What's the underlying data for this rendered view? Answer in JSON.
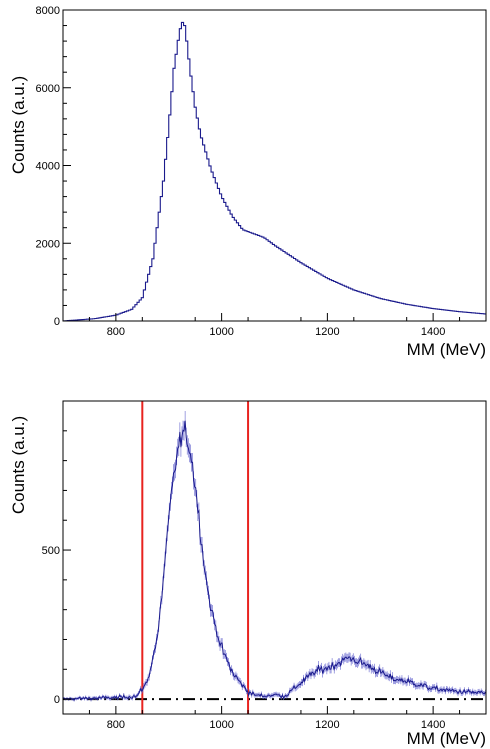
{
  "colors": {
    "histogram": "#1a1a8c",
    "cut_lines": "#e8231f",
    "baseline": "#000000",
    "frame": "#000000"
  },
  "chart_data": [
    {
      "type": "line",
      "title": "",
      "xlabel": "MM (MeV)",
      "ylabel": "Counts (a.u.)",
      "xlim": [
        700,
        1500
      ],
      "ylim": [
        0,
        8000
      ],
      "xticks": [
        800,
        1000,
        1200,
        1400
      ],
      "xtick_labels": [
        "800",
        "1000",
        "1200",
        "1400"
      ],
      "yticks": [
        0,
        2000,
        4000,
        6000,
        8000
      ],
      "ytick_labels": [
        "0",
        "2000",
        "4000",
        "6000",
        "8000"
      ],
      "grid": false,
      "series": [
        {
          "style": "step-histogram",
          "x": [
            700,
            760,
            800,
            830,
            850,
            870,
            890,
            900,
            910,
            920,
            925,
            930,
            935,
            940,
            950,
            960,
            980,
            1000,
            1020,
            1040,
            1060,
            1080,
            1100,
            1150,
            1200,
            1250,
            1300,
            1350,
            1400,
            1450,
            1500
          ],
          "y": [
            0,
            60,
            150,
            300,
            600,
            1600,
            3600,
            5000,
            6500,
            7400,
            7700,
            7600,
            7100,
            6500,
            5500,
            4800,
            3900,
            3200,
            2700,
            2350,
            2250,
            2150,
            1950,
            1500,
            1100,
            800,
            580,
            430,
            320,
            240,
            180
          ]
        }
      ]
    },
    {
      "type": "line",
      "title": "",
      "xlabel": "MM (MeV)",
      "ylabel": "Counts (a.u.)",
      "xlim": [
        700,
        1500
      ],
      "ylim": [
        -50,
        1000
      ],
      "xticks": [
        800,
        1000,
        1200,
        1400
      ],
      "xtick_labels": [
        "800",
        "1000",
        "1200",
        "1400"
      ],
      "yticks": [
        0,
        500
      ],
      "ytick_labels": [
        "0",
        "500"
      ],
      "grid": false,
      "series": [
        {
          "style": "noisy-histogram",
          "x": [
            700,
            750,
            800,
            840,
            860,
            880,
            900,
            910,
            920,
            930,
            940,
            950,
            960,
            970,
            980,
            1000,
            1020,
            1040,
            1050,
            1060,
            1080,
            1100,
            1120,
            1140,
            1160,
            1180,
            1200,
            1220,
            1240,
            1260,
            1280,
            1300,
            1320,
            1350,
            1380,
            1400,
            1450,
            1500
          ],
          "y": [
            0,
            3,
            5,
            10,
            60,
            220,
            600,
            760,
            860,
            900,
            840,
            720,
            560,
            410,
            300,
            170,
            90,
            45,
            25,
            15,
            10,
            15,
            10,
            40,
            70,
            95,
            105,
            120,
            140,
            125,
            110,
            90,
            70,
            60,
            45,
            35,
            25,
            20
          ]
        }
      ],
      "cut_lines": [
        850,
        1050
      ],
      "baseline": 0
    }
  ]
}
